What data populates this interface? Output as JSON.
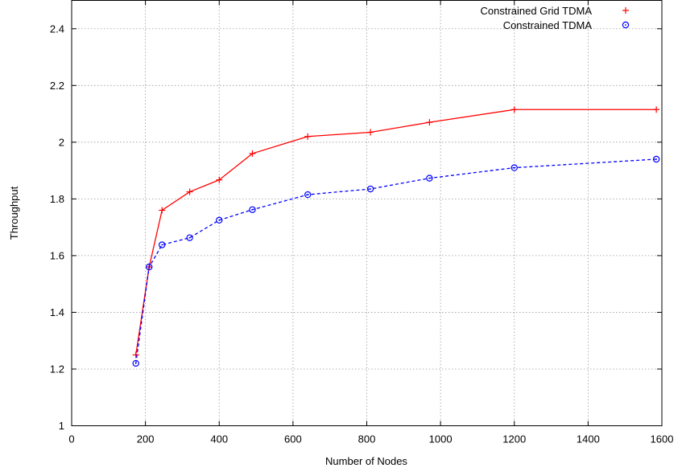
{
  "chart_data": {
    "type": "line",
    "xlabel": "Number of Nodes",
    "ylabel": "Throughput",
    "xlim": [
      0,
      1600
    ],
    "ylim": [
      1,
      2.5
    ],
    "x_ticks": [
      0,
      200,
      400,
      600,
      800,
      1000,
      1200,
      1400,
      1600
    ],
    "y_ticks": [
      1,
      1.2,
      1.4,
      1.6,
      1.8,
      2,
      2.2,
      2.4
    ],
    "x_tick_labels": [
      "0",
      "200",
      "400",
      "600",
      "800",
      "1000",
      "1200",
      "1400",
      "1600"
    ],
    "y_tick_labels": [
      "1",
      "1.2",
      "1.4",
      "1.6",
      "1.8",
      "2",
      "2.2",
      "2.4"
    ],
    "grid": true,
    "legend_position": "top-right",
    "series": [
      {
        "name": "Constrained Grid TDMA",
        "color": "#ff0000",
        "marker": "plus",
        "line_style": "solid",
        "x": [
          174,
          210,
          245,
          320,
          400,
          490,
          640,
          810,
          970,
          1200,
          1585
        ],
        "y": [
          1.25,
          1.56,
          1.76,
          1.825,
          1.867,
          1.96,
          2.02,
          2.035,
          2.07,
          2.115,
          2.115
        ]
      },
      {
        "name": "Constrained TDMA",
        "color": "#0000ff",
        "marker": "circle",
        "line_style": "dashed",
        "x": [
          174,
          210,
          245,
          320,
          400,
          490,
          640,
          810,
          970,
          1200,
          1585
        ],
        "y": [
          1.22,
          1.56,
          1.638,
          1.663,
          1.725,
          1.762,
          1.815,
          1.835,
          1.873,
          1.91,
          1.94
        ]
      }
    ]
  }
}
